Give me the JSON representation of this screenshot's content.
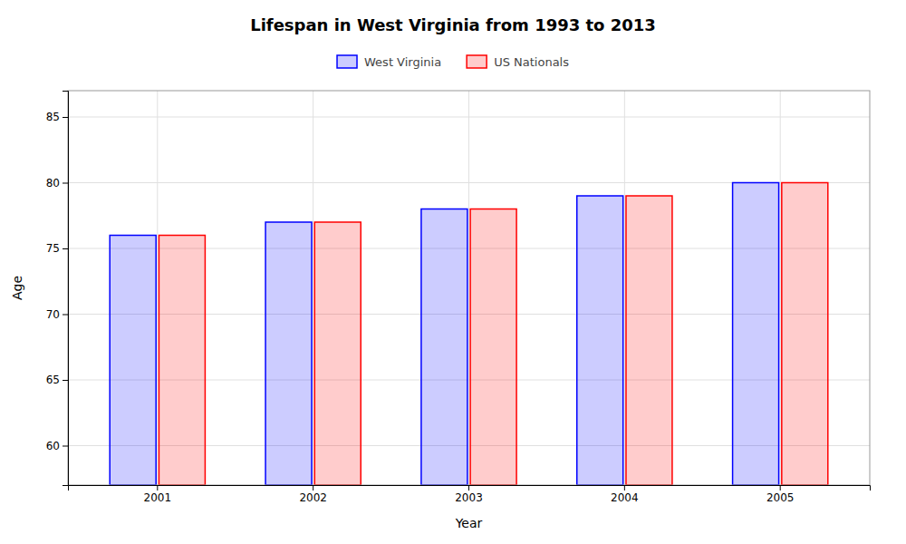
{
  "chart_data": {
    "type": "bar",
    "title": "Lifespan in West Virginia from 1993 to 2013",
    "xlabel": "Year",
    "ylabel": "Age",
    "categories": [
      "2001",
      "2002",
      "2003",
      "2004",
      "2005"
    ],
    "series": [
      {
        "name": "West Virginia",
        "color": "#0000ff",
        "values": [
          76,
          77,
          78,
          79,
          80
        ]
      },
      {
        "name": "US Nationals",
        "color": "#ff0000",
        "values": [
          76,
          77,
          78,
          79,
          80
        ]
      }
    ],
    "ylim": [
      57,
      87
    ],
    "yticks": [
      60,
      65,
      70,
      75,
      80,
      85
    ],
    "grid": true,
    "legend": "top"
  }
}
